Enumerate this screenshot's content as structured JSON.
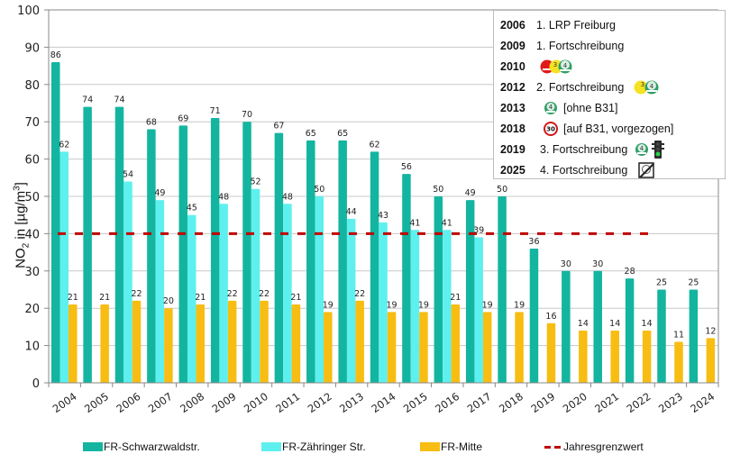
{
  "chart_data": {
    "type": "bar",
    "title": "",
    "xlabel": "",
    "ylabel": "NO2 in [µg/m³]",
    "ylim": [
      0,
      100
    ],
    "yticks": [
      0,
      10,
      20,
      30,
      40,
      50,
      60,
      70,
      80,
      90,
      100
    ],
    "grid": true,
    "legend_position": "bottom",
    "categories": [
      "2004",
      "2005",
      "2006",
      "2007",
      "2008",
      "2009",
      "2010",
      "2011",
      "2012",
      "2013",
      "2014",
      "2015",
      "2016",
      "2017",
      "2018",
      "2019",
      "2020",
      "2021",
      "2022",
      "2023",
      "2024"
    ],
    "series": [
      {
        "name": "FR-Schwarzwaldstr.",
        "color": "#13b5a0",
        "values": [
          86,
          74,
          74,
          68,
          69,
          71,
          70,
          67,
          65,
          65,
          62,
          56,
          50,
          49,
          50,
          36,
          30,
          30,
          28,
          25,
          25
        ]
      },
      {
        "name": "FR-Zähringer Str.",
        "color": "#5ef0ee",
        "values": [
          62,
          null,
          54,
          49,
          45,
          48,
          52,
          48,
          50,
          44,
          43,
          41,
          41,
          39,
          null,
          null,
          null,
          null,
          null,
          null,
          null
        ]
      },
      {
        "name": "FR-Mitte",
        "color": "#f8bd12",
        "values": [
          21,
          21,
          22,
          20,
          21,
          22,
          22,
          21,
          19,
          22,
          19,
          19,
          21,
          19,
          19,
          16,
          14,
          14,
          14,
          11,
          12
        ]
      }
    ],
    "reference_line": {
      "name": "Jahresgrenzwert",
      "value": 40,
      "color": "#c00000",
      "style": "dashed"
    },
    "annotations": [
      {
        "year": "2006",
        "text": "1. LRP Freiburg",
        "icons": []
      },
      {
        "year": "2009",
        "text": "1. Fortschreibung",
        "icons": []
      },
      {
        "year": "2010",
        "text": "",
        "icons": [
          "plakette-red-2",
          "plakette-yellow-3",
          "plakette-green-4"
        ]
      },
      {
        "year": "2012",
        "text": "2. Fortschreibung",
        "icons": [
          "plakette-yellow-3",
          "plakette-green-4"
        ]
      },
      {
        "year": "2013",
        "text": "[ohne B31]",
        "icons_before": [
          "plakette-green-4"
        ]
      },
      {
        "year": "2018",
        "text": "[auf B31, vorgezogen]",
        "icons_before": [
          "speed-limit-30"
        ]
      },
      {
        "year": "2019",
        "text": "3. Fortschreibung",
        "icons": [
          "plakette-green-4",
          "traffic-light-green"
        ]
      },
      {
        "year": "2025",
        "text": "4. Fortschreibung",
        "icons": [
          "umweltzone-end-sign"
        ]
      }
    ]
  },
  "yaxis": {
    "label_main": "NO",
    "label_sub": "2",
    "label_rest": " in [µg/m",
    "label_sup": "3",
    "label_end": "]"
  },
  "legend": {
    "s0": "FR-Schwarzwaldstr.",
    "s1": "FR-Zähringer Str.",
    "s2": "FR-Mitte",
    "ref": "Jahresgrenzwert"
  },
  "annot_box": {
    "rows": [
      {
        "year": "2006",
        "text": "1. LRP Freiburg"
      },
      {
        "year": "2009",
        "text": "1. Fortschreibung"
      },
      {
        "year": "2010",
        "text": ""
      },
      {
        "year": "2012",
        "text": "2. Fortschreibung"
      },
      {
        "year": "2013",
        "text": "[ohne B31]"
      },
      {
        "year": "2018",
        "text": "[auf B31, vorgezogen]"
      },
      {
        "year": "2019",
        "text": "3. Fortschreibung"
      },
      {
        "year": "2025",
        "text": "4. Fortschreibung"
      }
    ],
    "speed_sign_text": "30",
    "plakette_labels": {
      "red": "2",
      "yellow": "3",
      "green": "4"
    }
  }
}
